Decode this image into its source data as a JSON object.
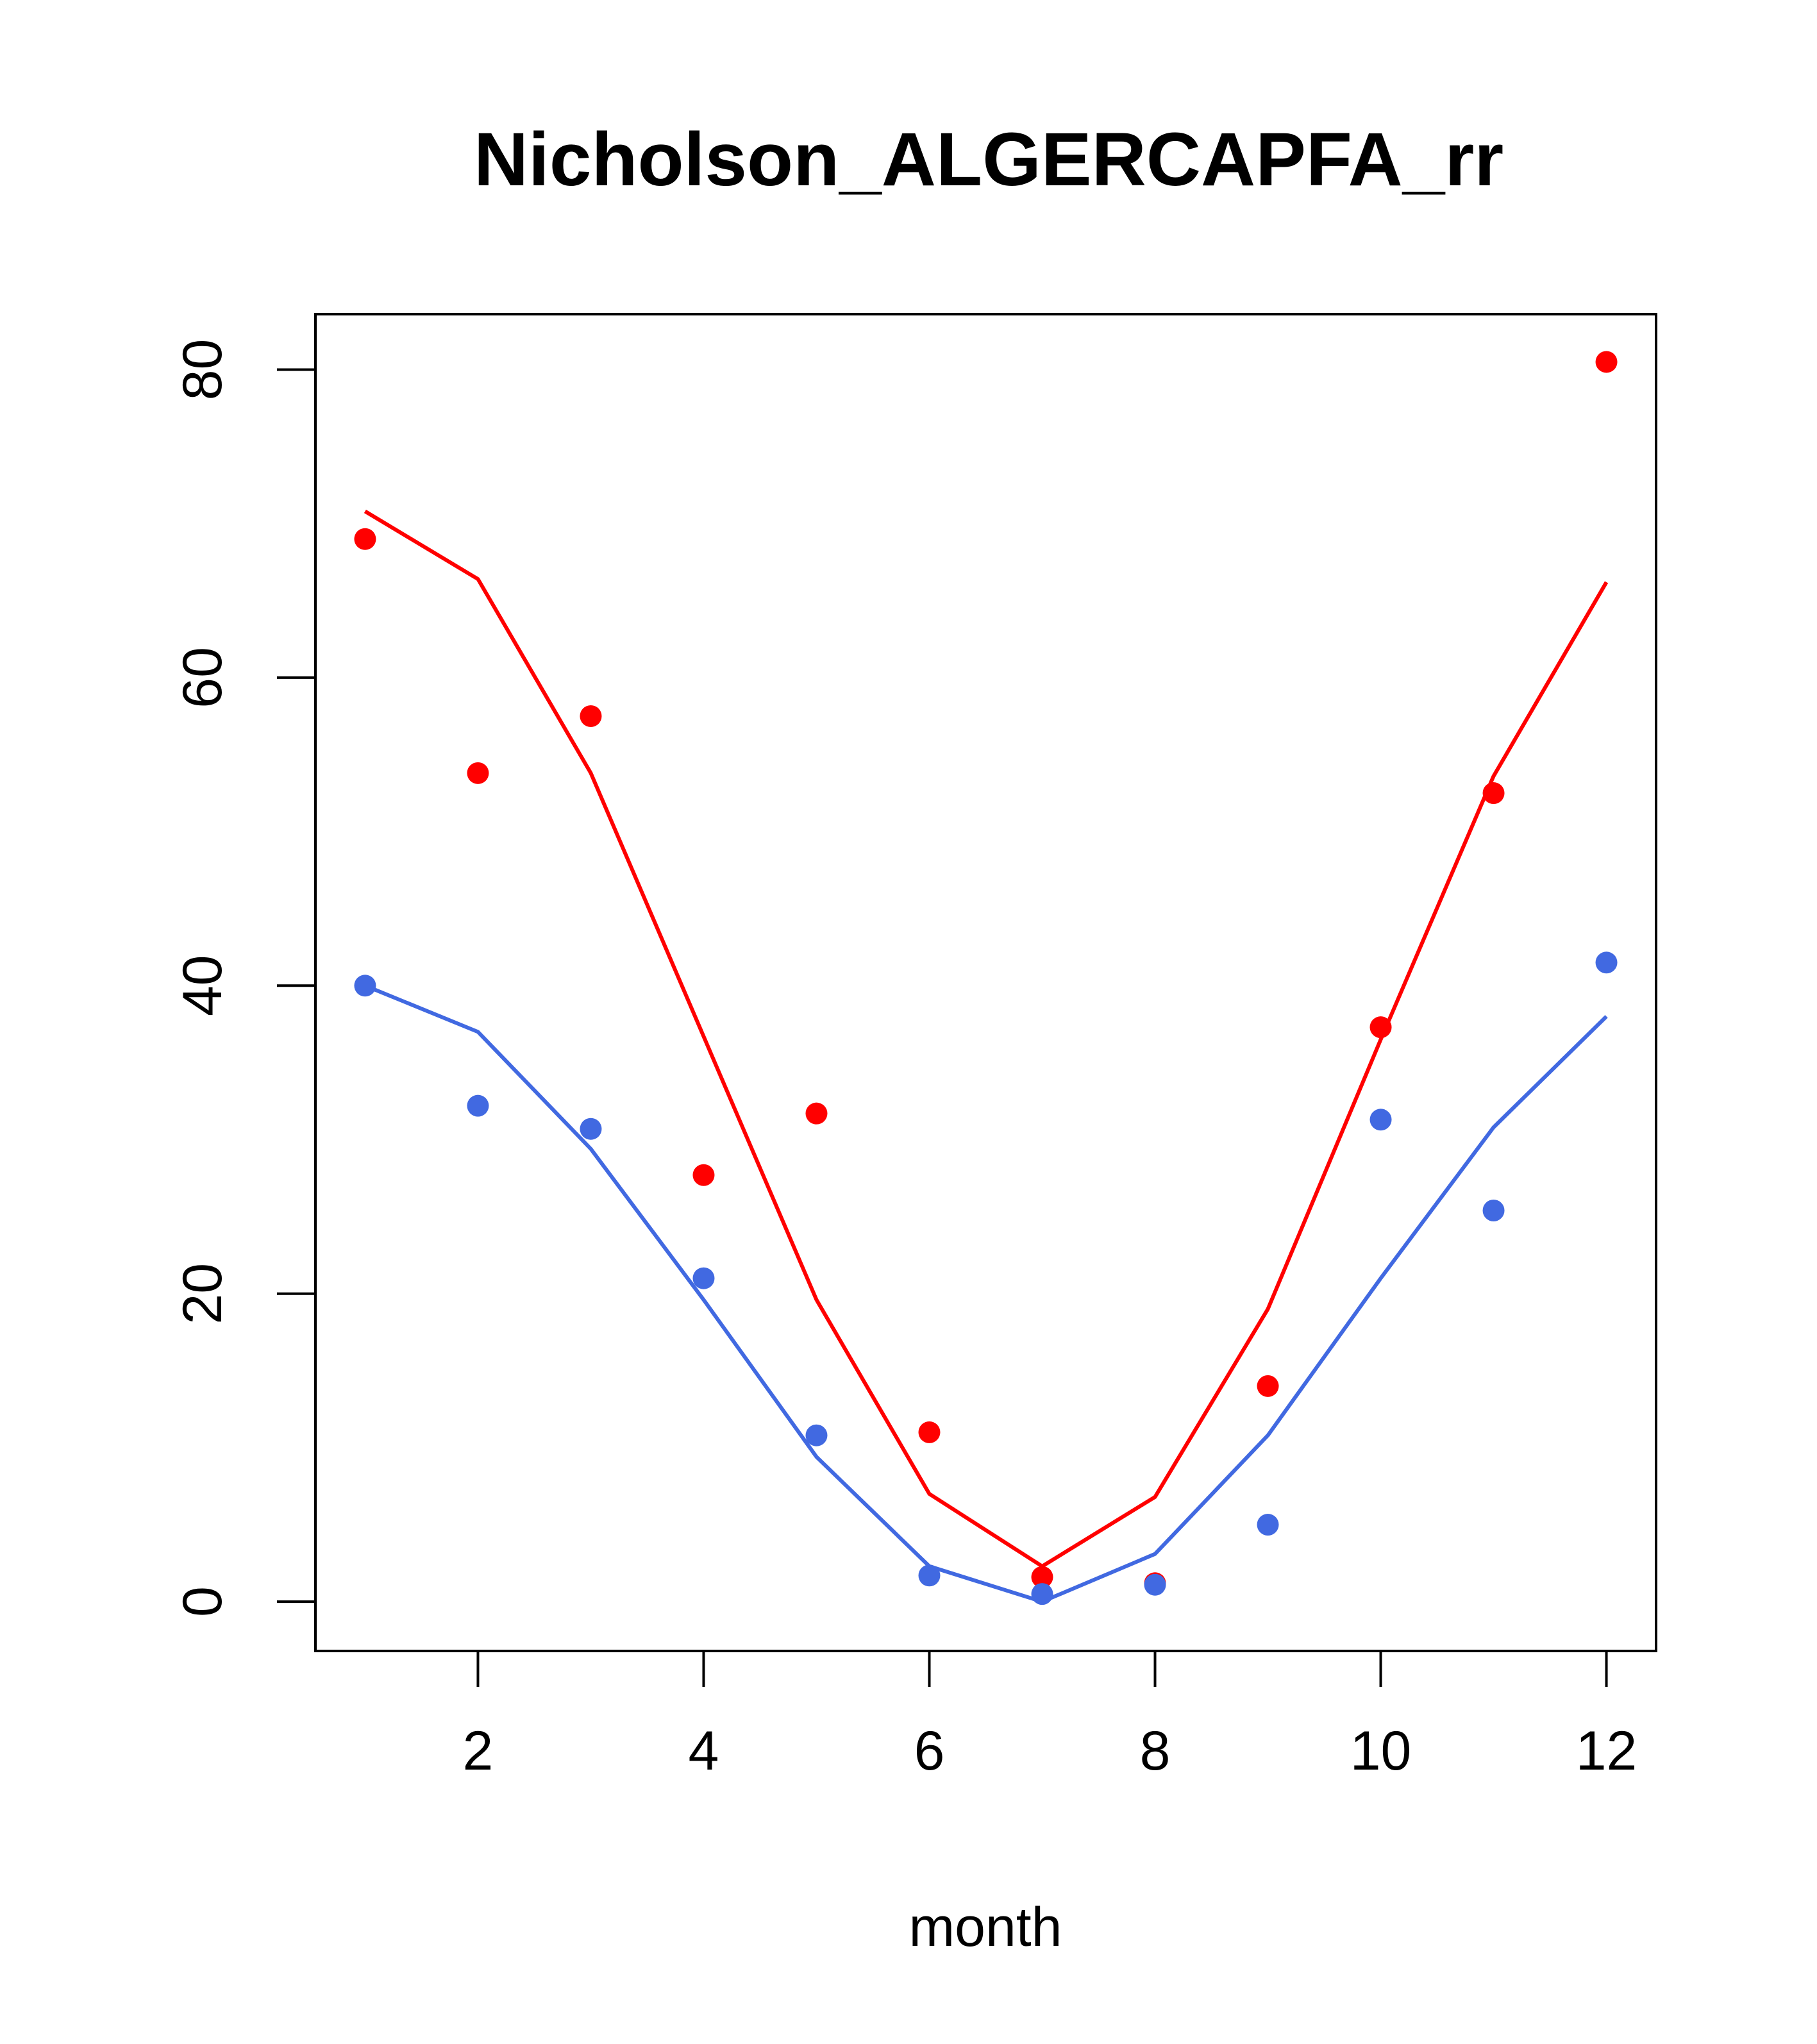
{
  "chart_data": {
    "type": "line",
    "title": "Nicholson_ALGERCAPFA_rr",
    "xlabel": "month",
    "ylabel": "",
    "xlim": [
      0.56,
      12.44
    ],
    "ylim": [
      -3.2,
      83.6
    ],
    "x_ticks": [
      2,
      4,
      6,
      8,
      10,
      12
    ],
    "y_ticks": [
      0,
      20,
      40,
      60,
      80
    ],
    "grid": false,
    "legend": "none",
    "x": [
      1,
      2,
      3,
      4,
      5,
      6,
      7,
      8,
      9,
      10,
      11,
      12
    ],
    "series": [
      {
        "color": "#FF0000",
        "points": [
          69.0,
          53.8,
          57.5,
          27.7,
          31.7,
          11.0,
          1.6,
          1.2,
          14.0,
          37.3,
          52.5,
          80.5
        ],
        "line": [
          70.8,
          66.4,
          53.8,
          36.7,
          19.6,
          7.0,
          2.3,
          6.8,
          19.0,
          36.5,
          53.6,
          66.2
        ]
      },
      {
        "color": "#4169E1",
        "points": [
          40.0,
          32.2,
          30.7,
          21.0,
          10.8,
          1.7,
          0.5,
          1.1,
          5.0,
          31.3,
          25.4,
          41.5
        ],
        "line": [
          40.0,
          37.0,
          29.4,
          19.6,
          9.4,
          2.3,
          0.0,
          3.1,
          10.8,
          21.0,
          30.8,
          38.0
        ]
      }
    ]
  }
}
